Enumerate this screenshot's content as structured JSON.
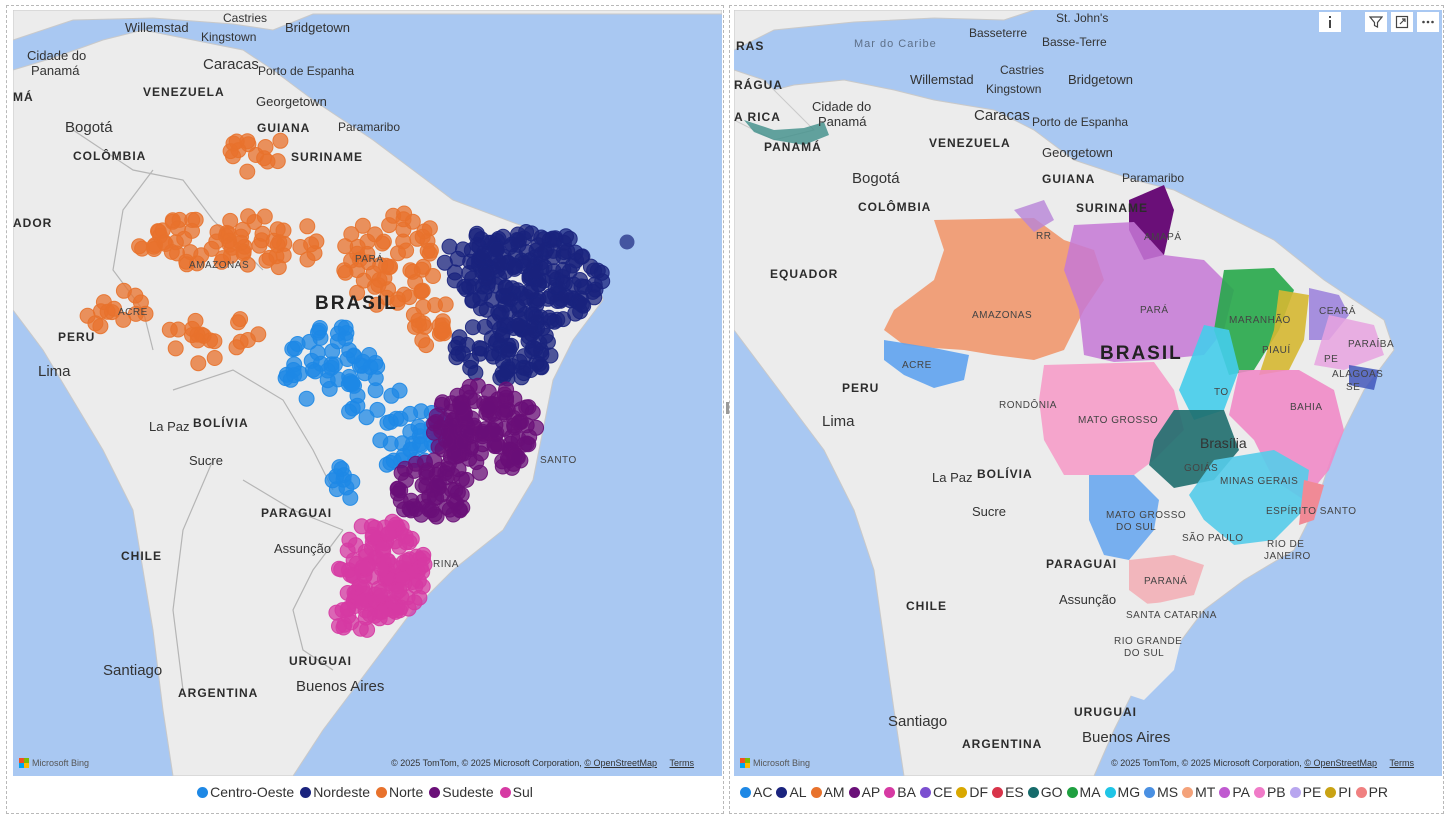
{
  "left_map": {
    "attribution": {
      "bing": "Microsoft Bing",
      "copyright": "© 2025 TomTom, © 2025 Microsoft Corporation,",
      "osm": "© OpenStreetMap",
      "terms": "Terms"
    },
    "labels": {
      "willemstad": "Willemstad",
      "castries": "Castries",
      "bridgetown": "Bridgetown",
      "kingstown": "Kingstown",
      "cidade_panama": "Cidade do",
      "cidade_panama2": "Panamá",
      "caracas": "Caracas",
      "porto_espanha": "Porto de Espanha",
      "venezuela": "VENEZUELA",
      "georgetown": "Georgetown",
      "ma": "MÁ",
      "bogota": "Bogotá",
      "guiana": "GUIANA",
      "paramaribo": "Paramaribo",
      "colombia": "COLÔMBIA",
      "suriname": "SURINAME",
      "equador": "ADOR",
      "amazonas": "AMAZONAS",
      "para": "PARÁ",
      "brasil": "BRASIL",
      "peru": "PERU",
      "lima": "Lima",
      "acre": "ACRE",
      "la_paz": "La Paz",
      "bolivia": "BOLÍVIA",
      "sucre": "Sucre",
      "paraguai": "PARAGUAI",
      "assuncao": "Assunção",
      "chile": "CHILE",
      "santiago": "Santiago",
      "uruguai": "URUGUAI",
      "argentina": "ARGENTINA",
      "buenos_aires": "Buenos Aires",
      "santo": "SANTO",
      "rina": "RINA"
    },
    "legend": [
      {
        "label": "Centro-Oeste",
        "color": "#1e88e5"
      },
      {
        "label": "Nordeste",
        "color": "#1a237e"
      },
      {
        "label": "Norte",
        "color": "#e8722c"
      },
      {
        "label": "Sudeste",
        "color": "#6a0f78"
      },
      {
        "label": "Sul",
        "color": "#d63aa3"
      }
    ]
  },
  "right_map": {
    "attribution": {
      "bing": "Microsoft Bing",
      "copyright": "© 2025 TomTom, © 2025 Microsoft Corporation,",
      "osm": "© OpenStreetMap",
      "terms": "Terms"
    },
    "labels": {
      "ras": "RAS",
      "mar_caribe": "Mar do Caribe",
      "basseterre": "Basseterre",
      "basse_terre": "Basse-Terre",
      "johns": "St. John's",
      "ragua": "RÁGUA",
      "castries": "Castries",
      "willemstad": "Willemstad",
      "bridgetown": "Bridgetown",
      "kingstown": "Kingstown",
      "a_rica": "A RICA",
      "cidade_panama": "Cidade do",
      "cidade_panama2": "Panamá",
      "caracas": "Caracas",
      "porto_espanha": "Porto de Espanha",
      "panama": "PANAMÁ",
      "venezuela": "VENEZUELA",
      "georgetown": "Georgetown",
      "bogota": "Bogotá",
      "guiana": "GUIANA",
      "paramaribo": "Paramaribo",
      "colombia": "COLÔMBIA",
      "suriname": "SURINAME",
      "rr": "RR",
      "amapa": "AMAPÁ",
      "equador": "EQUADOR",
      "amazonas": "AMAZONAS",
      "para": "PARÁ",
      "maranhao": "MARANHÃO",
      "ceara": "CEARÁ",
      "paraiba": "PARAÍBA",
      "piaui": "PIAUÍ",
      "pe": "PE",
      "brasil": "BRASIL",
      "alagoas": "ALAGOAS",
      "se": "SE",
      "peru": "PERU",
      "acre": "ACRE",
      "to": "TO",
      "bahia": "BAHIA",
      "lima": "Lima",
      "rondonia": "RONDÔNIA",
      "mato_grosso": "MATO GROSSO",
      "brasilia": "Brasília",
      "goias": "GOIÁS",
      "la_paz": "La Paz",
      "bolivia": "BOLÍVIA",
      "minas": "MINAS GERAIS",
      "sucre": "Sucre",
      "mato_grosso_sul": "MATO GROSSO",
      "mato_grosso_sul2": "DO SUL",
      "espirito_santo": "ESPÍRITO SANTO",
      "sao_paulo": "SÃO PAULO",
      "rio": "RIO DE",
      "rio2": "JANEIRO",
      "paraguai": "PARAGUAI",
      "parana": "PARANÁ",
      "assuncao": "Assunção",
      "chile": "CHILE",
      "santa_catarina": "SANTA CATARINA",
      "rio_grande": "RIO GRANDE",
      "rio_grande2": "DO SUL",
      "uruguai": "URUGUAI",
      "buenos_aires": "Buenos Aires",
      "santiago": "Santiago",
      "argentina": "ARGENTINA"
    },
    "legend": [
      {
        "label": "AC",
        "color": "#1e88e5"
      },
      {
        "label": "AL",
        "color": "#1a237e"
      },
      {
        "label": "AM",
        "color": "#e8722c"
      },
      {
        "label": "AP",
        "color": "#6a0f78"
      },
      {
        "label": "BA",
        "color": "#d63aa3"
      },
      {
        "label": "CE",
        "color": "#7b4fd0"
      },
      {
        "label": "DF",
        "color": "#d9a800"
      },
      {
        "label": "ES",
        "color": "#d8344a"
      },
      {
        "label": "GO",
        "color": "#166b6b"
      },
      {
        "label": "MA",
        "color": "#1fa040"
      },
      {
        "label": "MG",
        "color": "#1fc5e6"
      },
      {
        "label": "MS",
        "color": "#4a90e2"
      },
      {
        "label": "MT",
        "color": "#f4a27a"
      },
      {
        "label": "PA",
        "color": "#c05ad0"
      },
      {
        "label": "PB",
        "color": "#f07bc8"
      },
      {
        "label": "PE",
        "color": "#b8a6ef"
      },
      {
        "label": "PI",
        "color": "#c9a314"
      },
      {
        "label": "PR",
        "color": "#f08080"
      }
    ],
    "header_icons": [
      "info-icon",
      "filter-icon",
      "focus-mode-icon",
      "more-options-icon"
    ]
  }
}
